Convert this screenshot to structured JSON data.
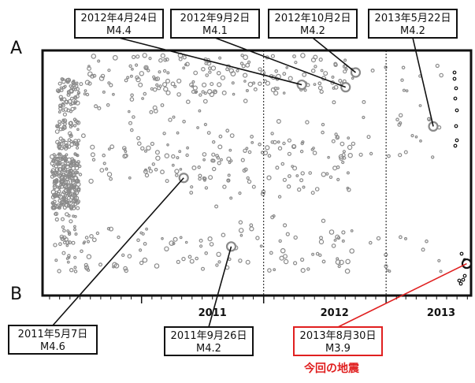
{
  "chart_data": {
    "type": "scatter",
    "title": "",
    "xlabel": "",
    "ylabel": "",
    "profile": {
      "start_label": "A",
      "end_label": "B"
    },
    "x_ticks": [
      {
        "label": "2011",
        "date": "2011-01-01"
      },
      {
        "label": "2012",
        "date": "2012-01-01"
      },
      {
        "label": "2013",
        "date": "2013-01-01"
      }
    ],
    "x_range": [
      "2010-03-11",
      "2013-09-12"
    ],
    "y_range_fraction": [
      0,
      1
    ],
    "year_boundaries": [
      "2012-01-01",
      "2013-01-01"
    ],
    "colors": {
      "past_events": "#8a8a8a",
      "recent_events": "#111111",
      "highlight_box": "#e02020",
      "frame": "#111111"
    },
    "highlighted_events": [
      {
        "label_date": "2012年4月24日",
        "label_mag": "M4.4",
        "date": "2012-04-24",
        "pos": 0.14,
        "color": "#8a8a8a",
        "boxed": false
      },
      {
        "label_date": "2012年9月2日",
        "label_mag": "M4.1",
        "date": "2012-09-02",
        "pos": 0.15,
        "color": "#8a8a8a",
        "boxed": false
      },
      {
        "label_date": "2012年10月2日",
        "label_mag": "M4.2",
        "date": "2012-10-02",
        "pos": 0.09,
        "color": "#8a8a8a",
        "boxed": false
      },
      {
        "label_date": "2013年5月22日",
        "label_mag": "M4.2",
        "date": "2013-05-22",
        "pos": 0.31,
        "color": "#8a8a8a",
        "boxed": false
      },
      {
        "label_date": "2011年5月7日",
        "label_mag": "M4.6",
        "date": "2011-05-07",
        "pos": 0.52,
        "color": "#8a8a8a",
        "boxed": false
      },
      {
        "label_date": "2011年9月26日",
        "label_mag": "M4.2",
        "date": "2011-09-26",
        "pos": 0.8,
        "color": "#8a8a8a",
        "boxed": false
      },
      {
        "label_date": "2013年8月30日",
        "label_mag": "M3.9",
        "date": "2013-08-30",
        "pos": 0.87,
        "color": "#111111",
        "boxed": true
      }
    ],
    "annotation": "今回の地震"
  }
}
